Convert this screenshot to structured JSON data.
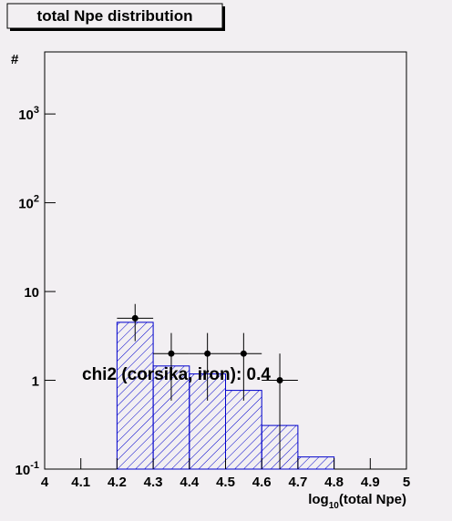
{
  "chart_data": {
    "type": "histogram",
    "title": "total Npe distribution",
    "ylabel": "#",
    "xlabel_parts": [
      "log",
      "10",
      "(total Npe)"
    ],
    "annotation": "chi2 (corsika, iron): 0.4",
    "bins": [
      4.2,
      4.3,
      4.4,
      4.5,
      4.6,
      4.7,
      4.8
    ],
    "counts": [
      4.5,
      1.45,
      1.18,
      0.77,
      0.31,
      0.137
    ],
    "color": "#0000cc",
    "points": {
      "x": [
        4.25,
        4.35,
        4.45,
        4.55,
        4.65
      ],
      "values": [
        5,
        2,
        2,
        2,
        1
      ],
      "errors": [
        2.24,
        1.41,
        1.41,
        1.41,
        1
      ],
      "x_err": [
        0.05,
        0.05,
        0.05,
        0.05,
        0.05
      ],
      "color": "#000000"
    },
    "xlim": [
      4,
      5
    ],
    "xticks": [
      4,
      4.1,
      4.2,
      4.3,
      4.4,
      4.5,
      4.6,
      4.7,
      4.8,
      4.9,
      5
    ],
    "ylim": [
      0.1,
      5000
    ],
    "log_y": true,
    "yticks": [
      {
        "value": 0.1,
        "label": "10",
        "exp": "-1"
      },
      1,
      10,
      {
        "value": 100,
        "label": "10",
        "exp": "2"
      },
      {
        "value": 1000,
        "label": "10",
        "exp": "3"
      }
    ]
  }
}
